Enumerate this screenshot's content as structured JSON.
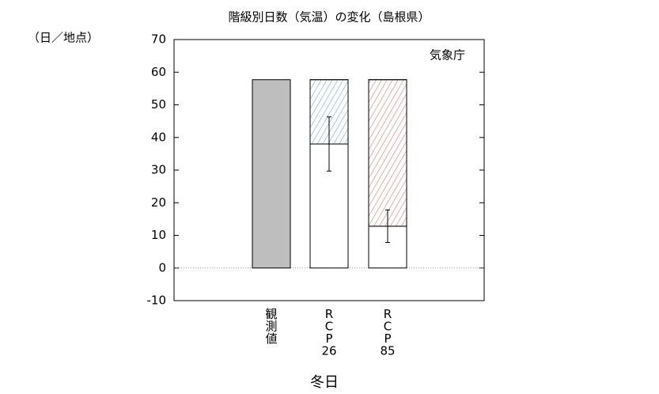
{
  "chart_data": {
    "type": "bar",
    "title": "階級別日数（気温）の変化（島根県）",
    "y_label": "（日／地点）",
    "x_label": "冬日",
    "annotation": "気象庁",
    "categories": [
      "観測値",
      "RCP26",
      "RCP85"
    ],
    "values": [
      57.7,
      38,
      12.8
    ],
    "errors": [
      null,
      8.3,
      5
    ],
    "decrease": [
      null,
      19.7,
      44.9
    ],
    "colors": [
      "#bebebe",
      "#ffffff",
      "#ffffff"
    ],
    "hatch_colors": [
      null,
      "#5b9cc4",
      "#d0675a"
    ],
    "ylim": [
      -10,
      70
    ],
    "yticks": [
      -10,
      0,
      10,
      20,
      30,
      40,
      50,
      60,
      70
    ],
    "zero_line": true
  }
}
